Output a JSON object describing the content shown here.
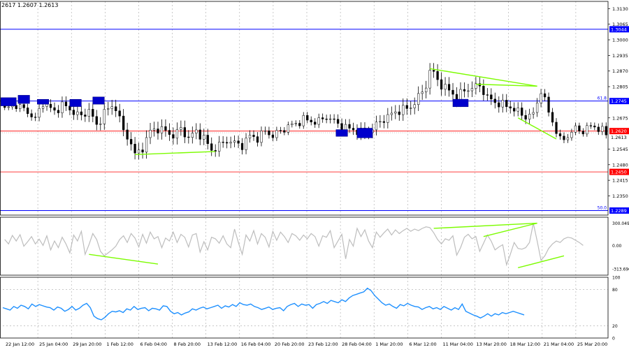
{
  "header": {
    "quote": "2617 1.2607 1.2613"
  },
  "colors": {
    "background": "#ffffff",
    "frame": "#000000",
    "grid": "#a8a8a8",
    "level_blue": "#0000ff",
    "level_red": "#ff0000",
    "tag_blue": "#0000ff",
    "tag_red": "#ff0000",
    "candle": "#000000",
    "boxes": "#0000cc",
    "divergence": "#7cfc00",
    "cci_line": "#bdbdbd",
    "rsi_line": "#1e90ff"
  },
  "chart_data": [
    {
      "type": "candlestick",
      "pane": "price",
      "ylim": [
        1.227,
        1.316
      ],
      "y_ticks": [
        "1.3130",
        "1.3065",
        "1.3000",
        "1.2935",
        "1.2870",
        "1.2805",
        "1.2675",
        "1.2545",
        "1.2480",
        "1.2415",
        "1.2350"
      ],
      "x_ticks": [
        "22 Jan 12:00",
        "25 Jan 04:00",
        "29 Jan 20:00",
        "1 Feb 12:00",
        "6 Feb 04:00",
        "8 Feb 20:00",
        "13 Feb 12:00",
        "16 Feb 04:00",
        "20 Feb 20:00",
        "23 Feb 12:00",
        "28 Feb 04:00",
        "1 Mar 20:00",
        "6 Mar 12:00",
        "11 Mar 04:00",
        "13 Mar 20:00",
        "18 Mar 12:00",
        "21 Mar 04:00",
        "25 Mar 20:00"
      ],
      "levels": [
        {
          "value": 1.3044,
          "label": "1.3044",
          "color": "blue",
          "fib": ""
        },
        {
          "value": 1.2745,
          "label": "1.2745",
          "color": "blue",
          "fib": "61.8"
        },
        {
          "value": 1.262,
          "label": "1.2620",
          "color": "red",
          "fib": ""
        },
        {
          "value": 1.245,
          "label": "1.2450",
          "color": "red",
          "fib": ""
        },
        {
          "value": 1.2289,
          "label": "1.2289",
          "color": "blue",
          "fib": "50.0"
        }
      ],
      "current_price": "1.2613",
      "close_path": [
        [
          0,
          1.271
        ],
        [
          3,
          1.273
        ],
        [
          6,
          1.27
        ],
        [
          8,
          1.267
        ],
        [
          10,
          1.274
        ],
        [
          13,
          1.27
        ],
        [
          15,
          1.273
        ],
        [
          18,
          1.27
        ],
        [
          20,
          1.268
        ],
        [
          22,
          1.271
        ],
        [
          24,
          1.264
        ],
        [
          26,
          1.27
        ],
        [
          28,
          1.272
        ],
        [
          29,
          1.272
        ],
        [
          31,
          1.262
        ],
        [
          33,
          1.257
        ],
        [
          34,
          1.252
        ],
        [
          36,
          1.255
        ],
        [
          38,
          1.262
        ],
        [
          40,
          1.263
        ],
        [
          42,
          1.262
        ],
        [
          44,
          1.26
        ],
        [
          46,
          1.263
        ],
        [
          48,
          1.259
        ],
        [
          50,
          1.262
        ],
        [
          52,
          1.259
        ],
        [
          54,
          1.254
        ],
        [
          56,
          1.256
        ],
        [
          58,
          1.258
        ],
        [
          60,
          1.257
        ],
        [
          62,
          1.256
        ],
        [
          64,
          1.26
        ],
        [
          66,
          1.259
        ],
        [
          68,
          1.262
        ],
        [
          70,
          1.26
        ],
        [
          72,
          1.262
        ],
        [
          74,
          1.264
        ],
        [
          76,
          1.265
        ],
        [
          78,
          1.267
        ],
        [
          80,
          1.266
        ],
        [
          82,
          1.266
        ],
        [
          84,
          1.268
        ],
        [
          86,
          1.266
        ],
        [
          88,
          1.264
        ],
        [
          90,
          1.263
        ],
        [
          92,
          1.262
        ],
        [
          94,
          1.261
        ],
        [
          96,
          1.263
        ],
        [
          98,
          1.266
        ],
        [
          100,
          1.268
        ],
        [
          102,
          1.27
        ],
        [
          104,
          1.271
        ],
        [
          106,
          1.272
        ],
        [
          108,
          1.276
        ],
        [
          110,
          1.281
        ],
        [
          111,
          1.287
        ],
        [
          112,
          1.286
        ],
        [
          114,
          1.281
        ],
        [
          116,
          1.279
        ],
        [
          118,
          1.276
        ],
        [
          120,
          1.279
        ],
        [
          122,
          1.28
        ],
        [
          124,
          1.281
        ],
        [
          126,
          1.276
        ],
        [
          128,
          1.274
        ],
        [
          130,
          1.273
        ],
        [
          132,
          1.272
        ],
        [
          134,
          1.27
        ],
        [
          136,
          1.268
        ],
        [
          138,
          1.269
        ],
        [
          140,
          1.279
        ],
        [
          142,
          1.27
        ],
        [
          144,
          1.262
        ],
        [
          145,
          1.258
        ],
        [
          147,
          1.26
        ],
        [
          149,
          1.263
        ],
        [
          151,
          1.262
        ],
        [
          153,
          1.264
        ],
        [
          154,
          1.264
        ],
        [
          156,
          1.262
        ],
        [
          157,
          1.261
        ]
      ],
      "boxes": [
        {
          "center": [
            1,
            1.2742
          ],
          "size": [
            4,
            0.0034
          ]
        },
        {
          "center": [
            5,
            1.2752
          ],
          "size": [
            3,
            0.0034
          ]
        },
        {
          "center": [
            10,
            1.2742
          ],
          "size": [
            3,
            0.002
          ]
        },
        {
          "center": [
            18.5,
            1.2737
          ],
          "size": [
            3,
            0.003
          ]
        },
        {
          "center": [
            24.5,
            1.2747
          ],
          "size": [
            3,
            0.003
          ]
        },
        {
          "center": [
            88,
            1.2612
          ],
          "size": [
            3,
            0.0028
          ]
        },
        {
          "center": [
            94,
            1.2612
          ],
          "size": [
            4,
            0.004
          ]
        },
        {
          "center": [
            119,
            1.2737
          ],
          "size": [
            4,
            0.0031
          ]
        }
      ],
      "divergence_lines": [
        [
          [
            34,
            1.2522
          ],
          [
            55,
            1.2535
          ]
        ],
        [
          [
            111,
            1.288
          ],
          [
            139,
            1.2807
          ]
        ],
        [
          [
            123,
            1.2815
          ],
          [
            139,
            1.2807
          ]
        ],
        [
          [
            134,
            1.2675
          ],
          [
            144,
            1.2587
          ]
        ]
      ]
    },
    {
      "type": "line",
      "pane": "cci",
      "ylim": [
        -400,
        380
      ],
      "y_ticks": [
        "300.0494",
        "0.00",
        "-313.696"
      ],
      "values": [
        80,
        20,
        135,
        60,
        145,
        -10,
        50,
        120,
        20,
        85,
        0,
        130,
        -60,
        60,
        -30,
        110,
        20,
        -100,
        140,
        60,
        190,
        -120,
        10,
        160,
        80,
        -80,
        -140,
        -100,
        -60,
        -10,
        80,
        130,
        40,
        160,
        100,
        -20,
        150,
        30,
        180,
        90,
        120,
        -30,
        100,
        60,
        180,
        40,
        150,
        110,
        -20,
        140,
        160,
        -90,
        50,
        -60,
        110,
        90,
        30,
        130,
        20,
        -30,
        220,
        40,
        -120,
        140,
        60,
        200,
        20,
        160,
        110,
        -20,
        190,
        70,
        180,
        120,
        40,
        160,
        130,
        70,
        140,
        90,
        160,
        120,
        -10,
        130,
        110,
        200,
        -30,
        60,
        150,
        -180,
        80,
        -10,
        230,
        120,
        210,
        60,
        -30,
        180,
        110,
        170,
        220,
        140,
        210,
        160,
        200,
        230,
        190,
        220,
        200,
        230,
        250,
        240,
        170,
        80,
        20,
        90,
        70,
        130,
        -130,
        -30,
        110,
        150,
        90,
        120,
        -80,
        30,
        140,
        60,
        -60,
        -20,
        10,
        -260,
        -120,
        40,
        -40,
        -50,
        -30,
        40,
        300,
        60,
        -200,
        -140,
        -40,
        20,
        60,
        40,
        90,
        110,
        100,
        70,
        40,
        0
      ],
      "divergence_lines": [
        [
          [
            22,
            -120
          ],
          [
            40,
            -250
          ]
        ],
        [
          [
            112,
            230
          ],
          [
            139,
            300
          ]
        ],
        [
          [
            125,
            120
          ],
          [
            139,
            300
          ]
        ],
        [
          [
            134,
            -300
          ],
          [
            146,
            -140
          ]
        ]
      ]
    },
    {
      "type": "line",
      "pane": "rsi",
      "ylim": [
        0,
        100
      ],
      "y_ticks": [
        "100",
        "80",
        "20",
        "0"
      ],
      "values": [
        50,
        48,
        46,
        52,
        49,
        54,
        52,
        48,
        56,
        52,
        55,
        53,
        51,
        50,
        46,
        51,
        49,
        44,
        47,
        52,
        46,
        49,
        54,
        57,
        50,
        36,
        32,
        30,
        34,
        40,
        44,
        43,
        45,
        42,
        48,
        46,
        52,
        47,
        49,
        50,
        45,
        49,
        48,
        46,
        53,
        52,
        44,
        40,
        42,
        38,
        41,
        43,
        48,
        46,
        49,
        51,
        48,
        50,
        52,
        54,
        49,
        53,
        51,
        55,
        52,
        58,
        55,
        54,
        56,
        52,
        50,
        47,
        49,
        51,
        47,
        49,
        50,
        45,
        52,
        55,
        57,
        52,
        56,
        54,
        55,
        49,
        55,
        57,
        60,
        57,
        62,
        60,
        58,
        63,
        60,
        66,
        70,
        72,
        74,
        76,
        82,
        78,
        70,
        64,
        58,
        54,
        56,
        52,
        49,
        55,
        53,
        57,
        54,
        52,
        51,
        47,
        50,
        52,
        48,
        50,
        47,
        52,
        49,
        46,
        50,
        47,
        56,
        44,
        41,
        38,
        36,
        33,
        36,
        40,
        36,
        40,
        38,
        42,
        40,
        42,
        44,
        42,
        40,
        38
      ]
    }
  ]
}
